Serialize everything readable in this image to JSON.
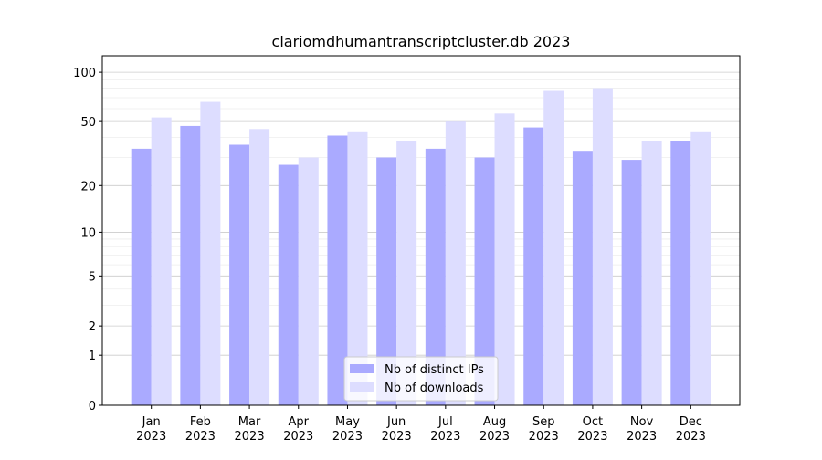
{
  "chart_data": {
    "type": "bar",
    "title": "clariomdhumantranscriptcluster.db 2023",
    "categories": [
      [
        "Jan",
        "2023"
      ],
      [
        "Feb",
        "2023"
      ],
      [
        "Mar",
        "2023"
      ],
      [
        "Apr",
        "2023"
      ],
      [
        "May",
        "2023"
      ],
      [
        "Jun",
        "2023"
      ],
      [
        "Jul",
        "2023"
      ],
      [
        "Aug",
        "2023"
      ],
      [
        "Sep",
        "2023"
      ],
      [
        "Oct",
        "2023"
      ],
      [
        "Nov",
        "2023"
      ],
      [
        "Dec",
        "2023"
      ]
    ],
    "series": [
      {
        "name": "Nb of distinct IPs",
        "color": "#aaaaff",
        "values": [
          34,
          47,
          36,
          27,
          41,
          30,
          34,
          30,
          46,
          33,
          29,
          38
        ]
      },
      {
        "name": "Nb of downloads",
        "color": "#ddddff",
        "values": [
          53,
          66,
          45,
          30,
          43,
          38,
          50,
          56,
          77,
          80,
          38,
          43
        ]
      }
    ],
    "yscale": "log1p",
    "ylim": [
      0,
      126
    ],
    "yticks": [
      0,
      1,
      2,
      5,
      10,
      20,
      50,
      100
    ],
    "yminorticks": [
      3,
      4,
      6,
      7,
      8,
      9,
      30,
      40,
      60,
      70,
      80,
      90
    ],
    "grid": true,
    "legend": "lower center"
  }
}
